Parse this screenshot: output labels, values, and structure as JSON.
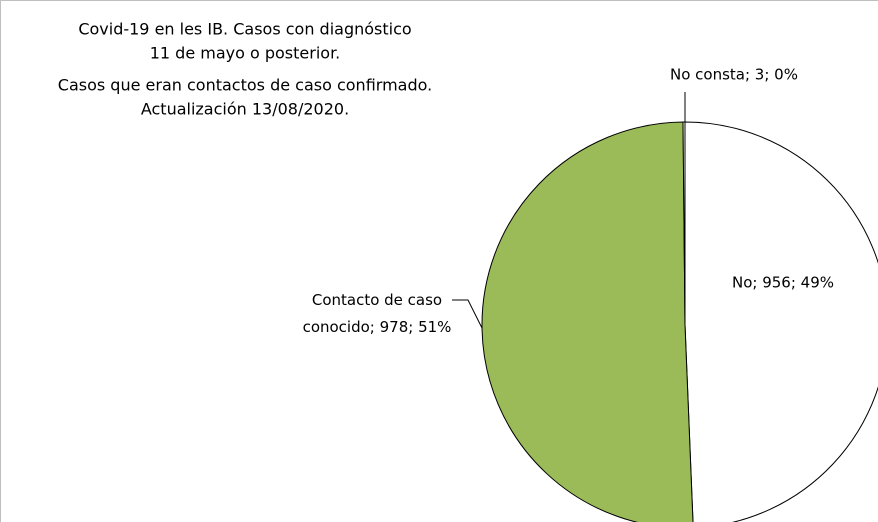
{
  "chart_data": {
    "type": "pie",
    "title": [
      "Covid-19 en les IB. Casos con diagnóstico",
      "11 de mayo o posterior.",
      "Casos que eran contactos de caso confirmado.",
      "Actualización  13/08/2020."
    ],
    "categories": [
      "No",
      "Contacto de caso conocido",
      "No consta"
    ],
    "values": [
      956,
      978,
      3
    ],
    "value_labels": [
      "No; 956; 49%",
      "Contacto de caso conocido; 978; 51%",
      "No consta; 3; 0%"
    ],
    "colors": [
      "#ffffff",
      "#9bbb59",
      "#ffffff"
    ]
  }
}
